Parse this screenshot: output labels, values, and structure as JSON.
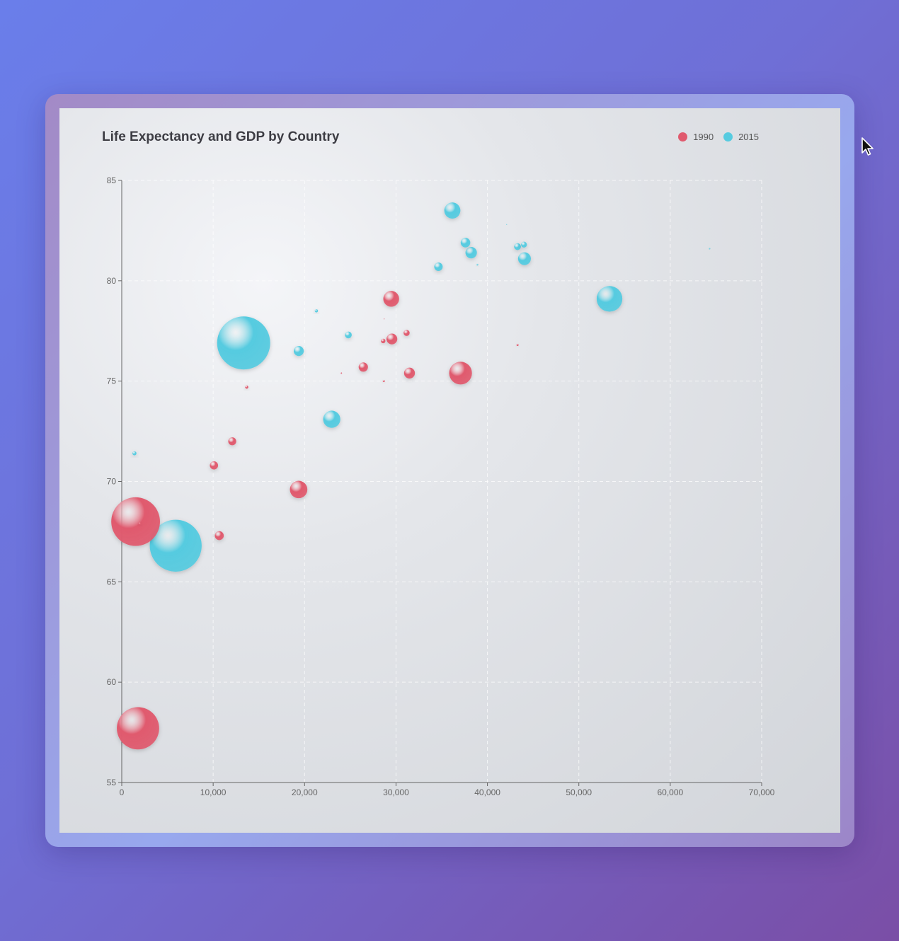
{
  "chart_data": {
    "type": "scatter",
    "title": "Life Expectancy and GDP by Country",
    "xlabel": "",
    "ylabel": "",
    "xlim": [
      0,
      70000
    ],
    "ylim": [
      55,
      85
    ],
    "x_ticks": [
      "0",
      "10,000",
      "20,000",
      "30,000",
      "40,000",
      "50,000",
      "60,000",
      "70,000"
    ],
    "x_tick_values": [
      0,
      10000,
      20000,
      30000,
      40000,
      50000,
      60000,
      70000
    ],
    "y_ticks": [
      "55",
      "60",
      "65",
      "70",
      "75",
      "80",
      "85"
    ],
    "y_tick_values": [
      55,
      60,
      65,
      70,
      75,
      80,
      85
    ],
    "grid": true,
    "legend_position": "top-right",
    "size_note": "bubble area",
    "series": [
      {
        "name": "1990",
        "color": "#e05a6e",
        "points": [
          {
            "x": 1516,
            "y": 68.0,
            "size": 1154605773
          },
          {
            "x": 1777,
            "y": 57.7,
            "size": 870601776
          },
          {
            "x": 29476,
            "y": 79.1,
            "size": 122249285
          },
          {
            "x": 37062,
            "y": 75.4,
            "size": 252847810
          },
          {
            "x": 19349,
            "y": 69.6,
            "size": 148244000
          },
          {
            "x": 31476,
            "y": 75.4,
            "size": 57110117
          },
          {
            "x": 26424,
            "y": 75.7,
            "size": 42200000
          },
          {
            "x": 29550,
            "y": 77.1,
            "size": 56943299
          },
          {
            "x": 12087,
            "y": 72.0,
            "size": 31000000
          },
          {
            "x": 10670,
            "y": 67.3,
            "size": 39000000
          },
          {
            "x": 10088,
            "y": 70.8,
            "size": 33000000
          },
          {
            "x": 31163,
            "y": 77.4,
            "size": 18000000
          },
          {
            "x": 28599,
            "y": 77.0,
            "size": 10000000
          },
          {
            "x": 13670,
            "y": 74.7,
            "size": 5000000
          },
          {
            "x": 2000,
            "y": 67.9,
            "size": 3000000
          },
          {
            "x": 43296,
            "y": 76.8,
            "size": 2000000
          },
          {
            "x": 28666,
            "y": 75.0,
            "size": 2000000
          },
          {
            "x": 24021,
            "y": 75.4,
            "size": 1000000
          },
          {
            "x": 28700,
            "y": 78.1,
            "size": 10000
          }
        ]
      },
      {
        "name": "2015",
        "color": "#56cbe0",
        "points": [
          {
            "x": 13334,
            "y": 76.9,
            "size": 1371220000
          },
          {
            "x": 5903,
            "y": 66.8,
            "size": 1311050527
          },
          {
            "x": 53354,
            "y": 79.1,
            "size": 321773631
          },
          {
            "x": 36162,
            "y": 83.5,
            "size": 126573481
          },
          {
            "x": 22970,
            "y": 73.1,
            "size": 143456918
          },
          {
            "x": 19360,
            "y": 76.5,
            "size": 49000000
          },
          {
            "x": 37599,
            "y": 81.9,
            "size": 45000000
          },
          {
            "x": 38225,
            "y": 81.4,
            "size": 64000000
          },
          {
            "x": 44053,
            "y": 81.1,
            "size": 80000000
          },
          {
            "x": 34644,
            "y": 80.7,
            "size": 35000000
          },
          {
            "x": 43294,
            "y": 81.7,
            "size": 23000000
          },
          {
            "x": 44000,
            "y": 81.8,
            "size": 17000000
          },
          {
            "x": 24787,
            "y": 77.3,
            "size": 23000000
          },
          {
            "x": 21291,
            "y": 78.5,
            "size": 5000000
          },
          {
            "x": 1390,
            "y": 71.4,
            "size": 8000000
          },
          {
            "x": 38900,
            "y": 80.8,
            "size": 1500000
          },
          {
            "x": 64304,
            "y": 81.6,
            "size": 1000000
          },
          {
            "x": 42100,
            "y": 82.8,
            "size": 10000
          }
        ]
      }
    ]
  }
}
